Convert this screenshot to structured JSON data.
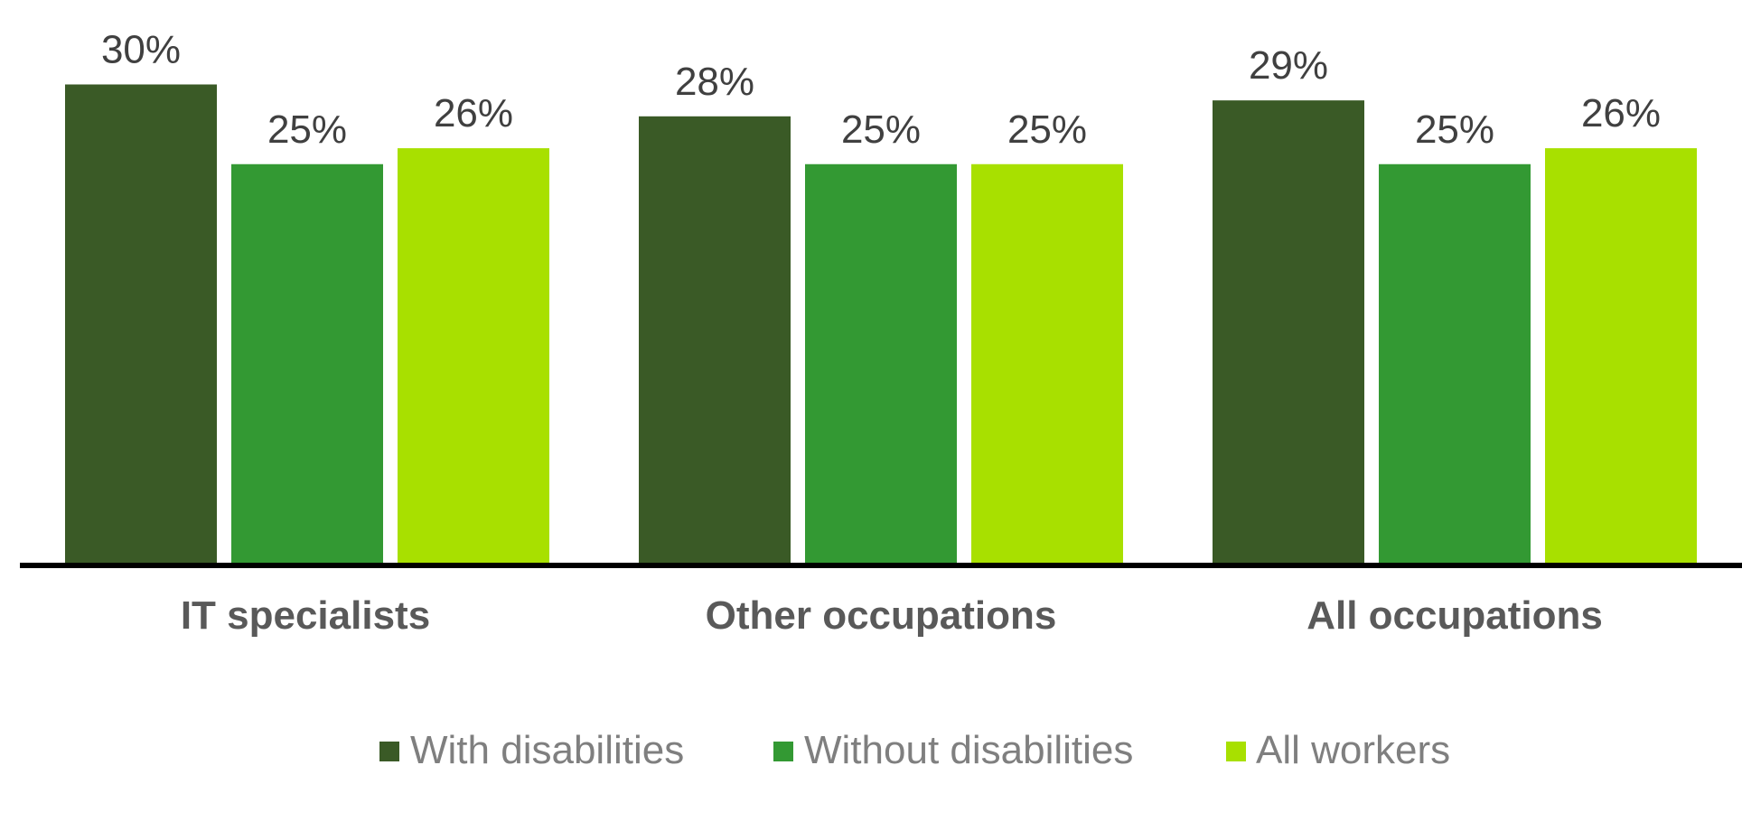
{
  "chart_data": {
    "type": "bar",
    "categories": [
      "IT specialists",
      "Other occupations",
      "All occupations"
    ],
    "series": [
      {
        "name": "With disabilities",
        "values": [
          30,
          28,
          29
        ],
        "labels": [
          "30%",
          "28%",
          "29%"
        ],
        "color": "#3a5a26"
      },
      {
        "name": "Without disabilities",
        "values": [
          25,
          25,
          25
        ],
        "labels": [
          "25%",
          "25%",
          "25%"
        ],
        "color": "#339933"
      },
      {
        "name": "All workers",
        "values": [
          26,
          25,
          26
        ],
        "labels": [
          "26%",
          "25%",
          "26%"
        ],
        "color": "#a8e000"
      }
    ],
    "ylim": [
      0,
      32
    ],
    "grid": false,
    "legend_position": "bottom",
    "axis_color": "#000000"
  }
}
